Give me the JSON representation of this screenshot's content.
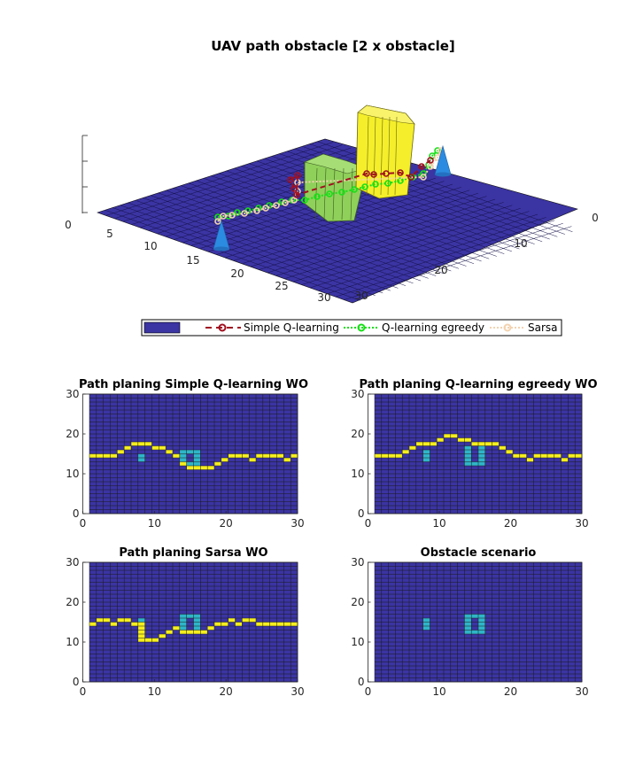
{
  "figure": {
    "title": "UAV path obstacle [2 x obstacle]"
  },
  "legend": {
    "entries": [
      "",
      "Simple Q-learning",
      "Q-learning egreedy",
      "Sarsa"
    ]
  },
  "colors": {
    "background_cell": "#3b34a3",
    "grid_line": "#1a1a1a",
    "obstacle_cell": "#2fb5c8",
    "path_cell": "#f5ee1f",
    "obstacle_green": "#8fd05a",
    "obstacle_yellow": "#f4ef2a",
    "cone": "#2b8be0",
    "simple_q": "#a01020",
    "egreedy": "#16e016",
    "sarsa": "#f3d2b0"
  },
  "chart_data": [
    {
      "type": "surface",
      "title": "UAV path obstacle [2 x obstacle]",
      "x_ticks": [
        "0",
        "10",
        "20",
        "30"
      ],
      "y_ticks": [
        "0",
        "5",
        "10",
        "15",
        "20",
        "25",
        "30"
      ],
      "z_ticks": [
        "0"
      ],
      "xlim": [
        0,
        30
      ],
      "ylim": [
        0,
        30
      ],
      "series": [
        {
          "name": "Simple Q-learning",
          "style": "dashed",
          "marker": "circle"
        },
        {
          "name": "Q-learning egreedy",
          "style": "dotted",
          "marker": "circle"
        },
        {
          "name": "Sarsa",
          "style": "dotted",
          "marker": "circle"
        }
      ]
    },
    {
      "type": "heatmap",
      "title": "Path planing Simple Q-learning WO",
      "xlim": [
        0,
        30
      ],
      "ylim": [
        0,
        30
      ],
      "x_ticks": [
        "0",
        "10",
        "20",
        "30"
      ],
      "y_ticks": [
        "0",
        "10",
        "20",
        "30"
      ],
      "path": [
        [
          1,
          15
        ],
        [
          2,
          15
        ],
        [
          3,
          15
        ],
        [
          4,
          15
        ],
        [
          5,
          16
        ],
        [
          6,
          17
        ],
        [
          7,
          18
        ],
        [
          8,
          18
        ],
        [
          9,
          18
        ],
        [
          10,
          17
        ],
        [
          11,
          17
        ],
        [
          12,
          16
        ],
        [
          13,
          15
        ],
        [
          14,
          13
        ],
        [
          15,
          12
        ],
        [
          16,
          12
        ],
        [
          17,
          12
        ],
        [
          18,
          12
        ],
        [
          19,
          13
        ],
        [
          20,
          14
        ],
        [
          21,
          15
        ],
        [
          22,
          15
        ],
        [
          23,
          15
        ],
        [
          24,
          14
        ],
        [
          25,
          15
        ],
        [
          26,
          15
        ],
        [
          27,
          15
        ],
        [
          28,
          15
        ],
        [
          29,
          14
        ],
        [
          30,
          15
        ]
      ],
      "obstacles": [
        [
          8,
          14
        ],
        [
          8,
          15
        ],
        [
          14,
          13
        ],
        [
          14,
          14
        ],
        [
          14,
          15
        ],
        [
          14,
          16
        ],
        [
          15,
          16
        ],
        [
          16,
          16
        ],
        [
          16,
          15
        ],
        [
          16,
          14
        ],
        [
          16,
          13
        ],
        [
          15,
          13
        ]
      ]
    },
    {
      "type": "heatmap",
      "title": "Path planing Q-learning egreedy WO",
      "xlim": [
        0,
        30
      ],
      "ylim": [
        0,
        30
      ],
      "x_ticks": [
        "0",
        "10",
        "20",
        "30"
      ],
      "y_ticks": [
        "0",
        "10",
        "20",
        "30"
      ],
      "path": [
        [
          1,
          15
        ],
        [
          2,
          15
        ],
        [
          3,
          15
        ],
        [
          4,
          15
        ],
        [
          5,
          16
        ],
        [
          6,
          17
        ],
        [
          7,
          18
        ],
        [
          8,
          18
        ],
        [
          9,
          18
        ],
        [
          10,
          19
        ],
        [
          11,
          20
        ],
        [
          12,
          20
        ],
        [
          13,
          19
        ],
        [
          14,
          19
        ],
        [
          15,
          18
        ],
        [
          16,
          18
        ],
        [
          17,
          18
        ],
        [
          18,
          18
        ],
        [
          19,
          17
        ],
        [
          20,
          16
        ],
        [
          21,
          15
        ],
        [
          22,
          15
        ],
        [
          23,
          14
        ],
        [
          24,
          15
        ],
        [
          25,
          15
        ],
        [
          26,
          15
        ],
        [
          27,
          15
        ],
        [
          28,
          14
        ],
        [
          29,
          15
        ],
        [
          30,
          15
        ]
      ],
      "obstacles": [
        [
          8,
          14
        ],
        [
          8,
          15
        ],
        [
          8,
          16
        ],
        [
          14,
          13
        ],
        [
          14,
          14
        ],
        [
          14,
          15
        ],
        [
          14,
          16
        ],
        [
          14,
          17
        ],
        [
          16,
          17
        ],
        [
          16,
          16
        ],
        [
          16,
          15
        ],
        [
          16,
          14
        ],
        [
          16,
          13
        ],
        [
          15,
          13
        ]
      ]
    },
    {
      "type": "heatmap",
      "title": "Path planing Sarsa WO",
      "xlim": [
        0,
        30
      ],
      "ylim": [
        0,
        30
      ],
      "x_ticks": [
        "0",
        "10",
        "20",
        "30"
      ],
      "y_ticks": [
        "0",
        "10",
        "20",
        "30"
      ],
      "path": [
        [
          1,
          15
        ],
        [
          2,
          16
        ],
        [
          3,
          16
        ],
        [
          4,
          15
        ],
        [
          5,
          16
        ],
        [
          6,
          16
        ],
        [
          7,
          15
        ],
        [
          8,
          15
        ],
        [
          8,
          14
        ],
        [
          8,
          13
        ],
        [
          8,
          12
        ],
        [
          8,
          11
        ],
        [
          9,
          11
        ],
        [
          10,
          11
        ],
        [
          11,
          12
        ],
        [
          12,
          13
        ],
        [
          13,
          14
        ],
        [
          14,
          13
        ],
        [
          15,
          13
        ],
        [
          16,
          13
        ],
        [
          17,
          13
        ],
        [
          18,
          14
        ],
        [
          19,
          15
        ],
        [
          20,
          15
        ],
        [
          21,
          16
        ],
        [
          22,
          15
        ],
        [
          23,
          16
        ],
        [
          24,
          16
        ],
        [
          25,
          15
        ],
        [
          26,
          15
        ],
        [
          27,
          15
        ],
        [
          28,
          15
        ],
        [
          29,
          15
        ],
        [
          30,
          15
        ]
      ],
      "obstacles": [
        [
          8,
          14
        ],
        [
          8,
          15
        ],
        [
          8,
          16
        ],
        [
          14,
          14
        ],
        [
          14,
          15
        ],
        [
          14,
          16
        ],
        [
          14,
          17
        ],
        [
          15,
          17
        ],
        [
          16,
          17
        ],
        [
          16,
          16
        ],
        [
          16,
          15
        ],
        [
          16,
          14
        ]
      ]
    },
    {
      "type": "heatmap",
      "title": "Obstacle scenario",
      "xlim": [
        0,
        30
      ],
      "ylim": [
        0,
        30
      ],
      "x_ticks": [
        "0",
        "10",
        "20",
        "30"
      ],
      "y_ticks": [
        "0",
        "10",
        "20",
        "30"
      ],
      "path": [],
      "obstacles": [
        [
          8,
          14
        ],
        [
          8,
          15
        ],
        [
          8,
          16
        ],
        [
          14,
          13
        ],
        [
          14,
          14
        ],
        [
          14,
          15
        ],
        [
          14,
          16
        ],
        [
          14,
          17
        ],
        [
          15,
          17
        ],
        [
          16,
          17
        ],
        [
          16,
          16
        ],
        [
          16,
          15
        ],
        [
          16,
          14
        ],
        [
          16,
          13
        ],
        [
          15,
          13
        ]
      ]
    }
  ]
}
